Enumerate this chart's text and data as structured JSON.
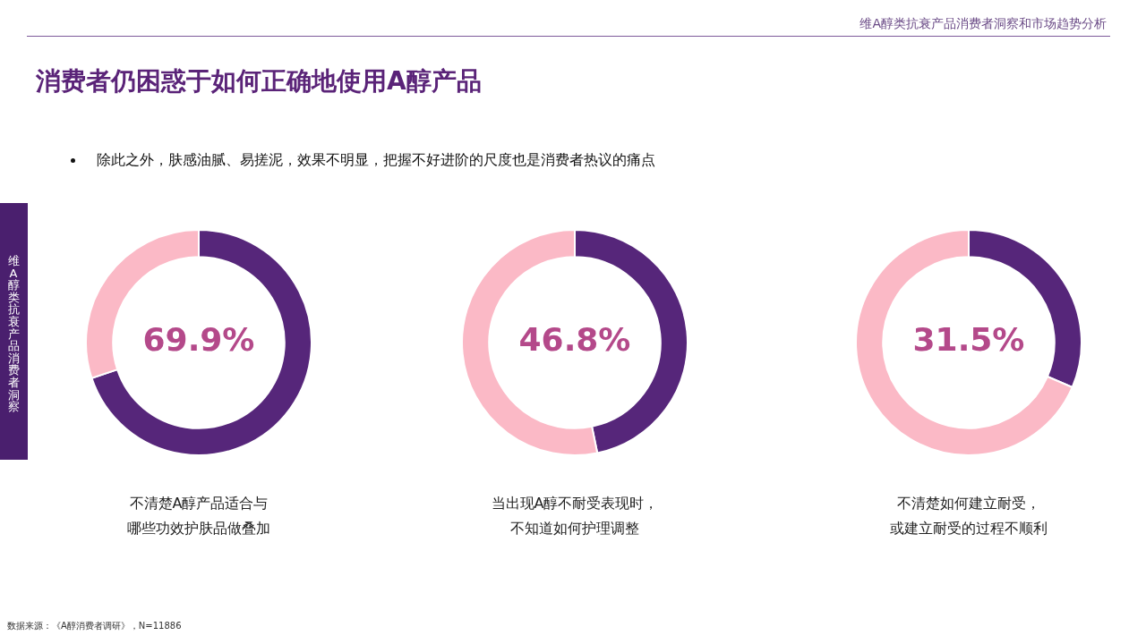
{
  "chart_data": [
    {
      "type": "other",
      "title": "消费者仍困惑于如何正确地使用A醇产品",
      "subtitle": "除此之外，肤感油腻、易搓泥，效果不明显，把握不好进阶的尺度也是消费者热议的痛点",
      "annotations": [
        "维A醇类抗衰产品消费者洞察和市场趋势分析",
        "维A醇类抗衰产品消费者洞察",
        "数据来源：《A醇消费者调研》，N=11886"
      ]
    },
    {
      "type": "donut",
      "categories": [
        null,
        null
      ],
      "values": [
        69.9,
        30.1
      ],
      "colors": [
        "#56267a",
        "#fbb9c6"
      ],
      "value_labels": [
        "69.9%",
        null
      ],
      "xlabel": "不清楚A醇产品适合与哪些功效护肤品做叠加"
    },
    {
      "type": "donut",
      "categories": [
        null,
        null
      ],
      "values": [
        46.8,
        53.2
      ],
      "colors": [
        "#56267a",
        "#fbb9c6"
      ],
      "value_labels": [
        "46.8%",
        null
      ],
      "xlabel": "当出现A醇不耐受表现时，不知道如何护理调整"
    },
    {
      "type": "donut",
      "categories": [
        null,
        null
      ],
      "values": [
        31.5,
        68.5
      ],
      "colors": [
        "#56267a",
        "#fbb9c6"
      ],
      "value_labels": [
        "31.5%",
        null
      ],
      "xlabel": "不清楚如何建立耐受，或建立耐受的过程不顺利"
    }
  ]
}
